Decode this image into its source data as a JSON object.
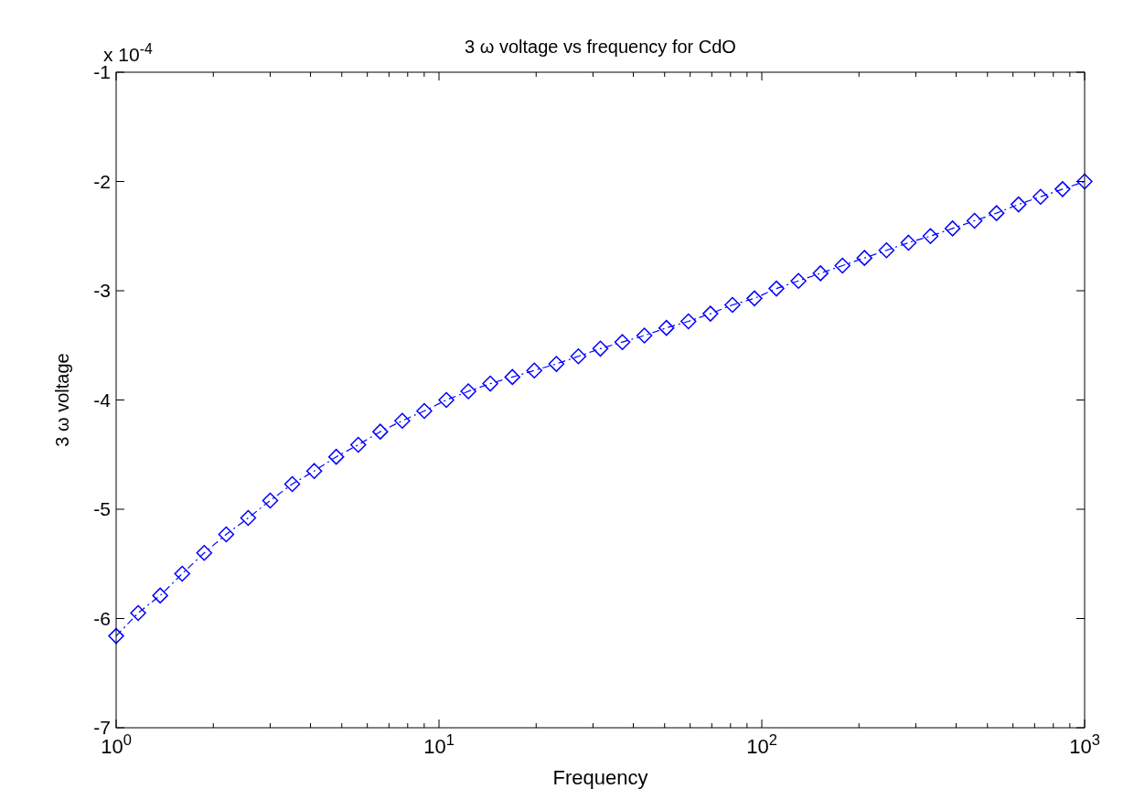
{
  "chart_data": {
    "type": "line",
    "title": "3 ω voltage vs frequency for CdO",
    "xlabel": "Frequency",
    "ylabel": "3 ω voltage",
    "annotations": [
      "x 10$^{-4}$"
    ],
    "log": "x",
    "marker": "diamond",
    "line_style": "dashed",
    "grid": false,
    "xlim": [
      1,
      1000
    ],
    "xticks": [
      {
        "value": 1,
        "label": "10$^{0}$"
      },
      {
        "value": 2,
        "label": null
      },
      {
        "value": 3,
        "label": null
      },
      {
        "value": 4,
        "label": null
      },
      {
        "value": 5,
        "label": null
      },
      {
        "value": 6,
        "label": null
      },
      {
        "value": 7,
        "label": null
      },
      {
        "value": 8,
        "label": null
      },
      {
        "value": 9,
        "label": null
      },
      {
        "value": 10,
        "label": "10$^{1}$"
      },
      {
        "value": 20,
        "label": null
      },
      {
        "value": 30,
        "label": null
      },
      {
        "value": 40,
        "label": null
      },
      {
        "value": 50,
        "label": null
      },
      {
        "value": 60,
        "label": null
      },
      {
        "value": 70,
        "label": null
      },
      {
        "value": 80,
        "label": null
      },
      {
        "value": 90,
        "label": null
      },
      {
        "value": 100,
        "label": "10$^{2}$"
      },
      {
        "value": 200,
        "label": null
      },
      {
        "value": 300,
        "label": null
      },
      {
        "value": 400,
        "label": null
      },
      {
        "value": 500,
        "label": null
      },
      {
        "value": 600,
        "label": null
      },
      {
        "value": 700,
        "label": null
      },
      {
        "value": 800,
        "label": null
      },
      {
        "value": 900,
        "label": null
      },
      {
        "value": 1000,
        "label": "10$^{3}$"
      }
    ],
    "ylim": [
      -7,
      -1
    ],
    "yticks": [
      -7,
      -6,
      -5,
      -4,
      -3,
      -2,
      -1
    ],
    "series": [
      {
        "color": "#0000ff",
        "x": [
          1,
          1.17,
          1.369,
          1.602,
          1.874,
          2.193,
          2.565,
          3.001,
          3.511,
          4.108,
          4.806,
          5.623,
          6.579,
          7.697,
          9.006,
          10.54,
          12.33,
          14.42,
          16.88,
          19.74,
          23.1,
          27.03,
          31.62,
          37,
          43.29,
          50.65,
          59.26,
          69.33,
          81.11,
          94.9,
          111,
          129.9,
          152,
          177.8,
          208,
          243.4,
          284.8,
          333.1,
          389.8,
          456,
          533.5,
          624.2,
          730.3,
          854.4,
          1000
        ],
        "values": [
          -6.16,
          -5.95,
          -5.79,
          -5.59,
          -5.4,
          -5.23,
          -5.08,
          -4.92,
          -4.77,
          -4.65,
          -4.52,
          -4.41,
          -4.29,
          -4.19,
          -4.1,
          -4,
          -3.92,
          -3.85,
          -3.79,
          -3.73,
          -3.67,
          -3.6,
          -3.53,
          -3.47,
          -3.41,
          -3.34,
          -3.28,
          -3.21,
          -3.13,
          -3.07,
          -2.98,
          -2.91,
          -2.84,
          -2.77,
          -2.7,
          -2.63,
          -2.56,
          -2.5,
          -2.43,
          -2.36,
          -2.29,
          -2.21,
          -2.14,
          -2.07,
          -2
        ]
      }
    ]
  }
}
